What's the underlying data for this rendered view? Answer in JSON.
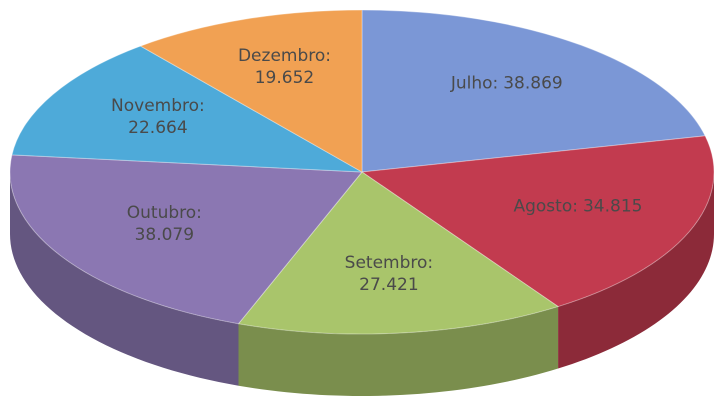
{
  "chart_data": {
    "type": "pie",
    "categories": [
      "Julho:",
      "Agosto:",
      "Setembro:",
      "Outubro:",
      "Novembro:",
      "Dezembro:"
    ],
    "values": [
      38869,
      34815,
      27421,
      38079,
      22664,
      19652
    ],
    "value_labels": [
      "38.869",
      "34.815",
      "27.421",
      "38.079",
      "22.664",
      "19.652"
    ],
    "colors": [
      "#7b97d6",
      "#c23b4f",
      "#a9c56b",
      "#8b77b2",
      "#4eaad9",
      "#f1a153"
    ]
  }
}
